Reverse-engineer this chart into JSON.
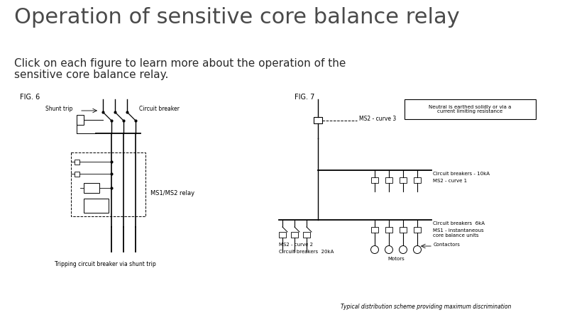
{
  "title": "Operation of sensitive core balance relay",
  "subtitle_line1": "Click on each figure to learn more about the operation of the",
  "subtitle_line2": "sensitive core balance relay.",
  "title_color": "#4a4a4a",
  "subtitle_color": "#2a2a2a",
  "bg_color": "#ffffff",
  "title_fontsize": 22,
  "subtitle_fontsize": 11,
  "fig6_label": "FIG. 6",
  "fig7_label": "FIG. 7",
  "fig6_caption": "Tripping circuit breaker via shunt trip",
  "fig7_caption": "Typical distribution scheme providing maximum discrimination",
  "fig6_annotations": {
    "shunt_trip": "Shunt trip",
    "circuit_breaker": "Circuit breaker",
    "ms1ms2_relay": "MS1/MS2 relay"
  },
  "fig7_annotations": {
    "neutral_box": "Neutral is earthed solidly or via a\ncurrent limiting resistance",
    "ms2_curve3": "MS2 - curve 3",
    "circuit_breakers_10kA": "Circuit breakers - 10kA",
    "ms2_curve1": "MS2 - curve 1",
    "ms2_curve2": "MS2 - curve 2",
    "circuit_breakers_20kA": "Circuit breakers  20kA",
    "circuit_breakers_6kA": "Circuit breakers  6kA",
    "ms1_instant": "MS1 - instantaneous\ncore balance units",
    "contactors": "Contactors",
    "motors": "Motors"
  },
  "diagram_color": "#000000"
}
